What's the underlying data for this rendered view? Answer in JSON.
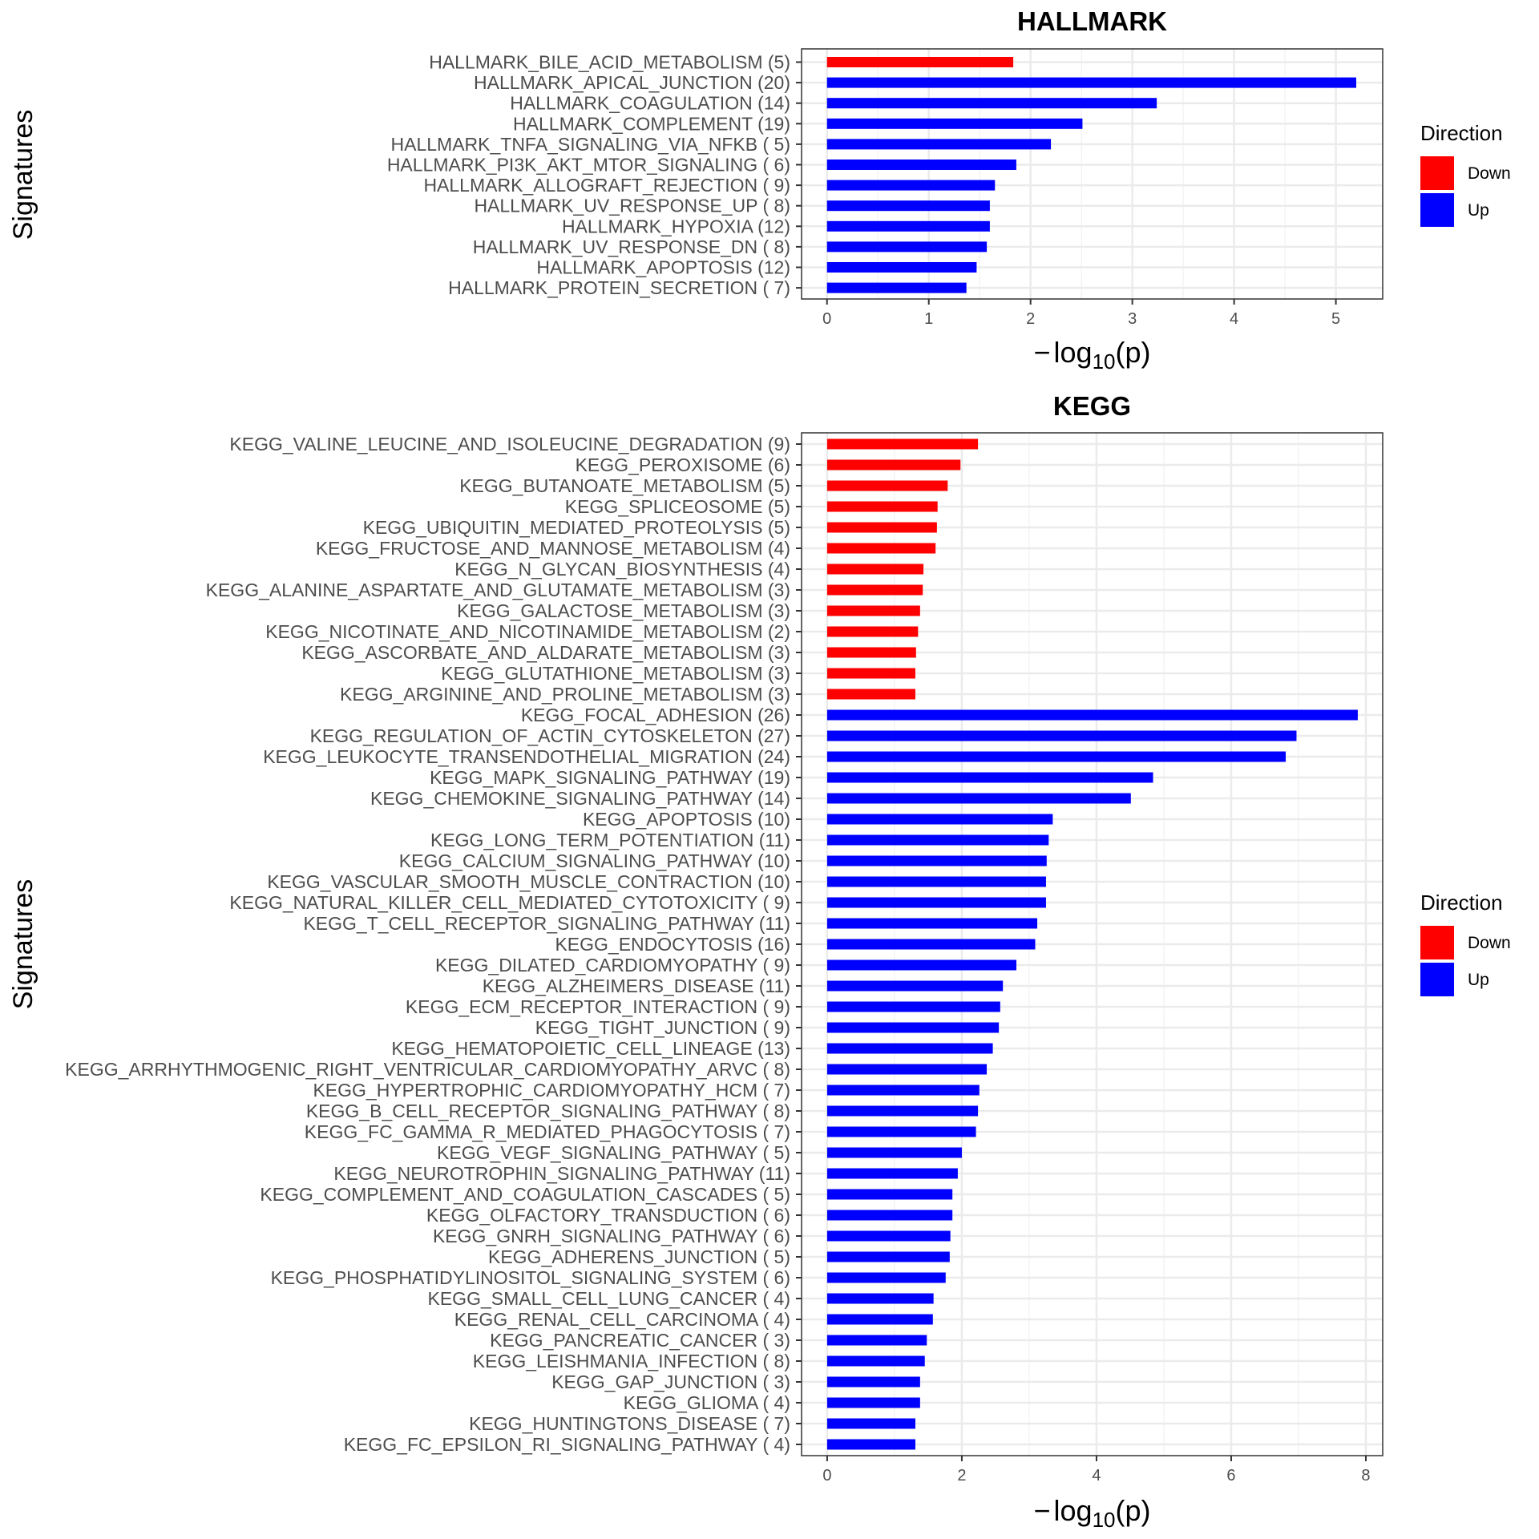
{
  "chart_data": [
    {
      "type": "bar",
      "orientation": "horizontal",
      "title": "HALLMARK",
      "xlabel": "-log10(p)",
      "xlabel_parts": {
        "minus": "−",
        "base": "log",
        "sub": "10",
        "arg": "(p)"
      },
      "ylabel": "Signatures",
      "xlim": [
        -0.25,
        5.46
      ],
      "xticks": [
        0,
        1,
        2,
        3,
        4,
        5
      ],
      "minor_gridlines": [
        0.5,
        1.5,
        2.5,
        3.5,
        4.5
      ],
      "grid": true,
      "legend": {
        "title": "Direction",
        "placement": "right",
        "entries": [
          {
            "label": "Down",
            "color": "#ff0000"
          },
          {
            "label": "Up",
            "color": "#0000ff"
          }
        ]
      },
      "categories": [
        "HALLMARK_BILE_ACID_METABOLISM (5)",
        "HALLMARK_APICAL_JUNCTION (20)",
        "HALLMARK_COAGULATION (14)",
        "HALLMARK_COMPLEMENT (19)",
        "HALLMARK_TNFA_SIGNALING_VIA_NFKB ( 5)",
        "HALLMARK_PI3K_AKT_MTOR_SIGNALING ( 6)",
        "HALLMARK_ALLOGRAFT_REJECTION ( 9)",
        "HALLMARK_UV_RESPONSE_UP ( 8)",
        "HALLMARK_HYPOXIA (12)",
        "HALLMARK_UV_RESPONSE_DN ( 8)",
        "HALLMARK_APOPTOSIS (12)",
        "HALLMARK_PROTEIN_SECRETION ( 7)"
      ],
      "values": [
        1.83,
        5.2,
        3.24,
        2.51,
        2.2,
        1.86,
        1.65,
        1.6,
        1.6,
        1.57,
        1.47,
        1.37
      ],
      "direction": [
        "Down",
        "Up",
        "Up",
        "Up",
        "Up",
        "Up",
        "Up",
        "Up",
        "Up",
        "Up",
        "Up",
        "Up"
      ]
    },
    {
      "type": "bar",
      "orientation": "horizontal",
      "title": "KEGG",
      "xlabel": "-log10(p)",
      "xlabel_parts": {
        "minus": "−",
        "base": "log",
        "sub": "10",
        "arg": "(p)"
      },
      "ylabel": "Signatures",
      "xlim": [
        -0.38,
        8.25
      ],
      "xticks": [
        0,
        2,
        4,
        6,
        8
      ],
      "minor_gridlines": [
        1,
        3,
        5,
        7
      ],
      "grid": true,
      "legend": {
        "title": "Direction",
        "placement": "right",
        "entries": [
          {
            "label": "Down",
            "color": "#ff0000"
          },
          {
            "label": "Up",
            "color": "#0000ff"
          }
        ]
      },
      "categories": [
        "KEGG_VALINE_LEUCINE_AND_ISOLEUCINE_DEGRADATION (9)",
        "KEGG_PEROXISOME (6)",
        "KEGG_BUTANOATE_METABOLISM (5)",
        "KEGG_SPLICEOSOME (5)",
        "KEGG_UBIQUITIN_MEDIATED_PROTEOLYSIS (5)",
        "KEGG_FRUCTOSE_AND_MANNOSE_METABOLISM (4)",
        "KEGG_N_GLYCAN_BIOSYNTHESIS (4)",
        "KEGG_ALANINE_ASPARTATE_AND_GLUTAMATE_METABOLISM (3)",
        "KEGG_GALACTOSE_METABOLISM (3)",
        "KEGG_NICOTINATE_AND_NICOTINAMIDE_METABOLISM (2)",
        "KEGG_ASCORBATE_AND_ALDARATE_METABOLISM (3)",
        "KEGG_GLUTATHIONE_METABOLISM (3)",
        "KEGG_ARGININE_AND_PROLINE_METABOLISM (3)",
        "KEGG_FOCAL_ADHESION (26)",
        "KEGG_REGULATION_OF_ACTIN_CYTOSKELETON (27)",
        "KEGG_LEUKOCYTE_TRANSENDOTHELIAL_MIGRATION (24)",
        "KEGG_MAPK_SIGNALING_PATHWAY (19)",
        "KEGG_CHEMOKINE_SIGNALING_PATHWAY (14)",
        "KEGG_APOPTOSIS (10)",
        "KEGG_LONG_TERM_POTENTIATION (11)",
        "KEGG_CALCIUM_SIGNALING_PATHWAY (10)",
        "KEGG_VASCULAR_SMOOTH_MUSCLE_CONTRACTION (10)",
        "KEGG_NATURAL_KILLER_CELL_MEDIATED_CYTOTOXICITY ( 9)",
        "KEGG_T_CELL_RECEPTOR_SIGNALING_PATHWAY (11)",
        "KEGG_ENDOCYTOSIS (16)",
        "KEGG_DILATED_CARDIOMYOPATHY ( 9)",
        "KEGG_ALZHEIMERS_DISEASE (11)",
        "KEGG_ECM_RECEPTOR_INTERACTION ( 9)",
        "KEGG_TIGHT_JUNCTION ( 9)",
        "KEGG_HEMATOPOIETIC_CELL_LINEAGE (13)",
        "KEGG_ARRHYTHMOGENIC_RIGHT_VENTRICULAR_CARDIOMYOPATHY_ARVC ( 8)",
        "KEGG_HYPERTROPHIC_CARDIOMYOPATHY_HCM ( 7)",
        "KEGG_B_CELL_RECEPTOR_SIGNALING_PATHWAY ( 8)",
        "KEGG_FC_GAMMA_R_MEDIATED_PHAGOCYTOSIS ( 7)",
        "KEGG_VEGF_SIGNALING_PATHWAY ( 5)",
        "KEGG_NEUROTROPHIN_SIGNALING_PATHWAY (11)",
        "KEGG_COMPLEMENT_AND_COAGULATION_CASCADES ( 5)",
        "KEGG_OLFACTORY_TRANSDUCTION ( 6)",
        "KEGG_GNRH_SIGNALING_PATHWAY ( 6)",
        "KEGG_ADHERENS_JUNCTION ( 5)",
        "KEGG_PHOSPHATIDYLINOSITOL_SIGNALING_SYSTEM ( 6)",
        "KEGG_SMALL_CELL_LUNG_CANCER ( 4)",
        "KEGG_RENAL_CELL_CARCINOMA ( 4)",
        "KEGG_PANCREATIC_CANCER ( 3)",
        "KEGG_LEISHMANIA_INFECTION ( 8)",
        "KEGG_GAP_JUNCTION ( 3)",
        "KEGG_GLIOMA ( 4)",
        "KEGG_HUNTINGTONS_DISEASE ( 7)",
        "KEGG_FC_EPSILON_RI_SIGNALING_PATHWAY ( 4)"
      ],
      "values": [
        2.24,
        1.98,
        1.79,
        1.64,
        1.63,
        1.61,
        1.43,
        1.42,
        1.38,
        1.35,
        1.32,
        1.31,
        1.31,
        7.88,
        6.97,
        6.81,
        4.84,
        4.51,
        3.35,
        3.29,
        3.26,
        3.25,
        3.25,
        3.12,
        3.09,
        2.81,
        2.61,
        2.57,
        2.55,
        2.46,
        2.37,
        2.26,
        2.24,
        2.21,
        2.0,
        1.94,
        1.86,
        1.86,
        1.83,
        1.82,
        1.76,
        1.58,
        1.57,
        1.48,
        1.45,
        1.38,
        1.38,
        1.31,
        1.31
      ],
      "direction": [
        "Down",
        "Down",
        "Down",
        "Down",
        "Down",
        "Down",
        "Down",
        "Down",
        "Down",
        "Down",
        "Down",
        "Down",
        "Down",
        "Up",
        "Up",
        "Up",
        "Up",
        "Up",
        "Up",
        "Up",
        "Up",
        "Up",
        "Up",
        "Up",
        "Up",
        "Up",
        "Up",
        "Up",
        "Up",
        "Up",
        "Up",
        "Up",
        "Up",
        "Up",
        "Up",
        "Up",
        "Up",
        "Up",
        "Up",
        "Up",
        "Up",
        "Up",
        "Up",
        "Up",
        "Up",
        "Up",
        "Up",
        "Up",
        "Up"
      ]
    }
  ],
  "colors": {
    "Down": "#ff0000",
    "Up": "#0000ff",
    "grid_major": "#ebebeb",
    "grid_minor": "#f4f4f4",
    "panel_border": "#333333",
    "label_text": "#4d4d4d"
  }
}
